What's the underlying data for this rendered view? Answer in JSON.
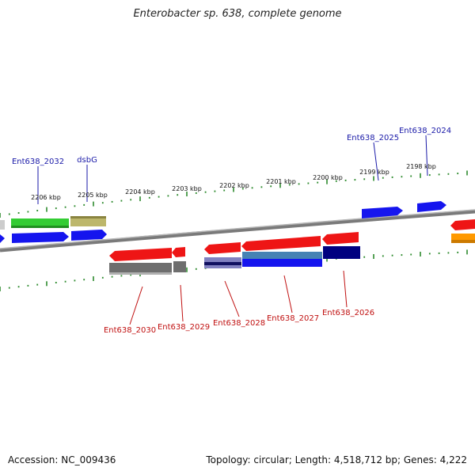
{
  "title": "Enterobacter sp. 638, complete genome",
  "accession_label": "Accession: NC_009436",
  "summary_label": "Topology: circular; Length: 4,518,712 bp; Genes: 4,222",
  "colors": {
    "backbone": "#808080",
    "tick": "#2e8b2e",
    "label_top": "#1a1aa8",
    "label_bottom": "#c01010"
  },
  "chart_data": {
    "type": "genome-map",
    "kbp_ticks": [
      {
        "kbp": 2206,
        "label": "2206 kbp"
      },
      {
        "kbp": 2205,
        "label": "2205 kbp"
      },
      {
        "kbp": 2204,
        "label": "2204 kbp"
      },
      {
        "kbp": 2203,
        "label": "2203 kbp"
      },
      {
        "kbp": 2202,
        "label": "2202 kbp"
      },
      {
        "kbp": 2201,
        "label": "2201 kbp"
      },
      {
        "kbp": 2200,
        "label": "2200 kbp"
      },
      {
        "kbp": 2199,
        "label": "2199 kbp"
      },
      {
        "kbp": 2198,
        "label": "2198 kbp"
      }
    ],
    "gene_labels_top": [
      "Ent638_2032",
      "dsbG",
      "Ent638_2025",
      "Ent638_2024"
    ],
    "gene_labels_bottom": [
      "Ent638_2030",
      "Ent638_2029",
      "Ent638_2028",
      "Ent638_2027",
      "Ent638_2026"
    ]
  }
}
